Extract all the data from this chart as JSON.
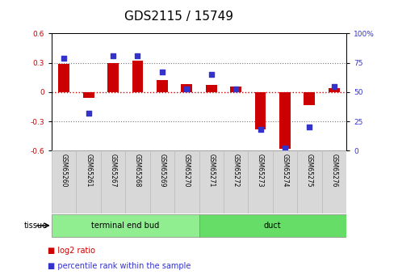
{
  "title": "GDS2115 / 15749",
  "samples": [
    "GSM65260",
    "GSM65261",
    "GSM65267",
    "GSM65268",
    "GSM65269",
    "GSM65270",
    "GSM65271",
    "GSM65272",
    "GSM65273",
    "GSM65274",
    "GSM65275",
    "GSM65276"
  ],
  "log2_ratio": [
    0.285,
    -0.06,
    0.295,
    0.32,
    0.12,
    0.08,
    0.07,
    0.06,
    -0.38,
    -0.58,
    -0.13,
    0.04
  ],
  "percentile_rank": [
    79,
    32,
    81,
    81,
    67,
    53,
    65,
    53,
    18,
    2,
    20,
    55
  ],
  "tissue_groups": [
    {
      "label": "terminal end bud",
      "start": 0,
      "end": 6,
      "color": "#90EE90"
    },
    {
      "label": "duct",
      "start": 6,
      "end": 12,
      "color": "#66DD66"
    }
  ],
  "ylim_left": [
    -0.6,
    0.6
  ],
  "ylim_right": [
    0,
    100
  ],
  "yticks_left": [
    -0.6,
    -0.3,
    0.0,
    0.3,
    0.6
  ],
  "yticks_right": [
    0,
    25,
    50,
    75,
    100
  ],
  "bar_color": "#CC0000",
  "dot_color": "#3333CC",
  "dotted_line_color": "#777777",
  "zero_line_color": "#CC0000",
  "bg_color": "#ffffff",
  "sample_label_bg": "#D8D8D8",
  "sample_label_edge": "#BBBBBB",
  "title_fontsize": 11,
  "tick_fontsize": 6.5,
  "sample_fontsize": 5.5,
  "tissue_fontsize": 7,
  "legend_fontsize": 7,
  "bar_width": 0.45,
  "dot_size": 14,
  "n_samples": 12
}
